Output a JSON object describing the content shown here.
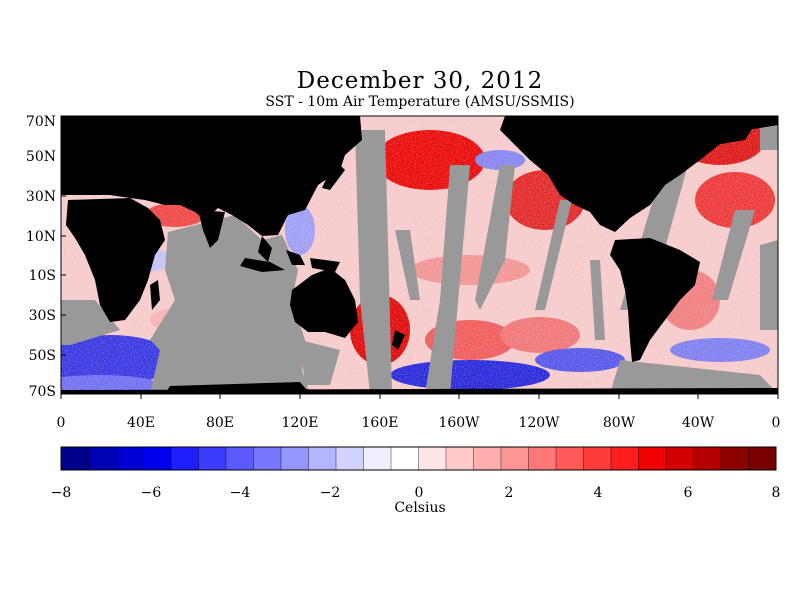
{
  "title": "December 30, 2012",
  "subtitle": "SST - 10m Air Temperature (AMSU/SSMIS)",
  "lat_labels": [
    "70N",
    "50N",
    "30N",
    "10N",
    "10S",
    "30S",
    "50S",
    "70S"
  ],
  "lon_labels": [
    "0",
    "40E",
    "80E",
    "120E",
    "160E",
    "160W",
    "120W",
    "80W",
    "40W",
    "0"
  ],
  "colorbar": {
    "label": "Celsius",
    "min": -8,
    "max": 8,
    "tick_labels": [
      "−8",
      "−6",
      "−4",
      "−2",
      "0",
      "2",
      "4",
      "6",
      "8"
    ],
    "colors": [
      "#00008b",
      "#0000b4",
      "#0000d2",
      "#0000f0",
      "#1e1eff",
      "#3c3cff",
      "#5a5aff",
      "#7878ff",
      "#9696ff",
      "#b4b4ff",
      "#d2d2ff",
      "#eeeeff",
      "#ffffff",
      "#ffe6e6",
      "#ffcaca",
      "#ffaeae",
      "#ff9696",
      "#ff7878",
      "#ff5a5a",
      "#ff3c3c",
      "#ff1e1e",
      "#f00000",
      "#d20000",
      "#b40000",
      "#8b0000",
      "#780000"
    ]
  },
  "map_colors": {
    "land": "#000000",
    "no_data": "#999999",
    "warm": "#e00000",
    "cold": "#2020e0"
  }
}
